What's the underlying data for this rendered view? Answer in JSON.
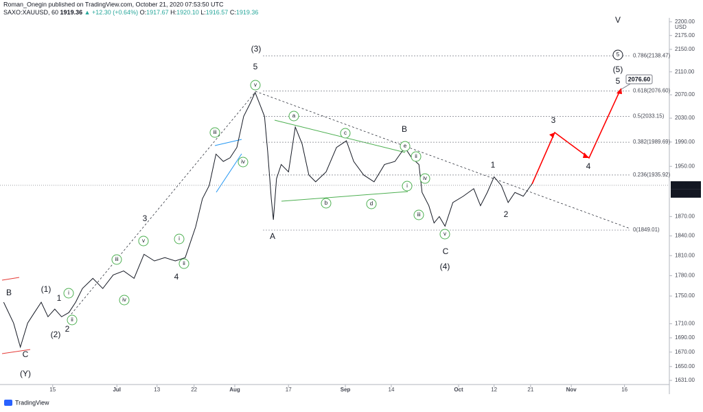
{
  "header": {
    "publisher": "Roman_Onegin published on TradingView.com, October 21, 2020 07:53:50 UTC",
    "symbol": "SAXO:XAUUSD, 60",
    "price": "1919.36",
    "change": "▲ +12.30 (+0.64%)",
    "ohlc": [
      {
        "label": "O:",
        "value": "1917.67"
      },
      {
        "label": "H:",
        "value": "1920.10"
      },
      {
        "label": "L:",
        "value": "1916.57"
      },
      {
        "label": "C:",
        "value": "1919.36"
      }
    ]
  },
  "chart_data": {
    "type": "line",
    "color": "#131722",
    "log_scale": true,
    "grid": false,
    "x": [
      0.7,
      2.6,
      3.9,
      5.3,
      6.6,
      7.9,
      9.2,
      10.5,
      11.8,
      13.2,
      14.5,
      15.8,
      17.8,
      19.7,
      21.7,
      23.7,
      25.7,
      27.6,
      29.6,
      31.6,
      33.6,
      35.5,
      37.5,
      38.8,
      40.1,
      41.4,
      42.8,
      44.1,
      45.4,
      46.7,
      48.0,
      48.9,
      49.7,
      50.7,
      51.3,
      52.0,
      52.4,
      53.0,
      53.9,
      55.3,
      56.6,
      57.9,
      59.2,
      60.5,
      62.5,
      64.5,
      66.4,
      67.8,
      69.7,
      71.7,
      73.7,
      75.7,
      77.6,
      78.9,
      80.3,
      80.9,
      82.2,
      83.2,
      84.2,
      85.3,
      86.8,
      88.8,
      90.8,
      92.1,
      93.4,
      94.7,
      96.1,
      97.4,
      98.7,
      100.3,
      102.0
    ],
    "values": [
      1741,
      1711,
      1677,
      1711,
      1726,
      1741,
      1720,
      1731,
      1720,
      1726,
      1741,
      1761,
      1776,
      1761,
      1781,
      1787,
      1776,
      1812,
      1802,
      1807,
      1802,
      1807,
      1854,
      1898,
      1919,
      1970,
      1958,
      1964,
      1981,
      2033,
      2056,
      2074,
      2056,
      2033,
      1975,
      1898,
      1865,
      1930,
      1953,
      1941,
      2015,
      1987,
      1936,
      1925,
      1941,
      1981,
      1992,
      1958,
      1936,
      1925,
      1953,
      1958,
      1981,
      1964,
      1953,
      1908,
      1887,
      1860,
      1870,
      1855,
      1892,
      1902,
      1914,
      1887,
      1908,
      1933,
      1919,
      1892,
      1908,
      1902,
      1922
    ],
    "xlim": [
      0,
      128.3
    ],
    "xticks": [
      {
        "value": 10.1,
        "label": "15"
      },
      {
        "value": 22.4,
        "label": "Jul"
      },
      {
        "value": 30.1,
        "label": "13"
      },
      {
        "value": 37.2,
        "label": "22"
      },
      {
        "value": 45.0,
        "label": "Aug"
      },
      {
        "value": 55.3,
        "label": "17"
      },
      {
        "value": 66.2,
        "label": "Sep"
      },
      {
        "value": 75.0,
        "label": "14"
      },
      {
        "value": 87.9,
        "label": "Oct"
      },
      {
        "value": 94.7,
        "label": "12"
      },
      {
        "value": 101.7,
        "label": "21"
      },
      {
        "value": 109.5,
        "label": "Nov"
      },
      {
        "value": 119.7,
        "label": "16"
      }
    ],
    "ylim": [
      1625.4,
      2206
    ],
    "yticks": [
      {
        "value": 2200,
        "label": "2200.00"
      },
      {
        "value": 2175,
        "label": "2175.00"
      },
      {
        "value": 2150,
        "label": "2150.00"
      },
      {
        "value": 2110,
        "label": "2110.00"
      },
      {
        "value": 2070,
        "label": "2070.00"
      },
      {
        "value": 2030,
        "label": "2030.00"
      },
      {
        "value": 1990,
        "label": "1990.00"
      },
      {
        "value": 1950,
        "label": "1950.00"
      },
      {
        "value": 1870,
        "label": "1870.00"
      },
      {
        "value": 1840,
        "label": "1840.00"
      },
      {
        "value": 1810,
        "label": "1810.00"
      },
      {
        "value": 1780,
        "label": "1780.00"
      },
      {
        "value": 1750,
        "label": "1750.00"
      },
      {
        "value": 1710,
        "label": "1710.00"
      },
      {
        "value": 1690,
        "label": "1690.00"
      },
      {
        "value": 1670,
        "label": "1670.00"
      },
      {
        "value": 1650,
        "label": "1650.00"
      },
      {
        "value": 1631,
        "label": "1631.00"
      }
    ],
    "currency": "USD",
    "last_price": 1919.36,
    "countdown": "06:15",
    "target_label": "2076.60",
    "levels": [
      {
        "value": 2138.47,
        "label": "0.786(2138.47)"
      },
      {
        "value": 2076.6,
        "label": "0.618(2076.60)"
      },
      {
        "value": 2033.15,
        "label": "0.5(2033.15)"
      },
      {
        "value": 1989.69,
        "label": "0.382(1989.69)"
      },
      {
        "value": 1935.92,
        "label": "0.236(1935.92)"
      },
      {
        "value": 1849.01,
        "label": "0(1849.01)"
      }
    ],
    "annotations": [
      {
        "text": "(3)",
        "color": "#e53935"
      },
      {
        "text": "5",
        "color": "#2196f3"
      },
      {
        "text": "v",
        "color": "#4caf50",
        "circled": true
      },
      {
        "text": "V",
        "color": "#f48fb1"
      },
      {
        "text": "5",
        "color": "#131722",
        "circled": true
      },
      {
        "text": "(5)",
        "color": "#e53935"
      },
      {
        "text": "5",
        "color": "#2196f3"
      },
      {
        "text": "a",
        "color": "#4caf50",
        "circled": true
      },
      {
        "text": "c",
        "color": "#4caf50",
        "circled": true
      },
      {
        "text": "B",
        "color": "#2196f3"
      },
      {
        "text": "e",
        "color": "#4caf50",
        "circled": true
      },
      {
        "text": "ii",
        "color": "#4caf50",
        "circled": true
      },
      {
        "text": "iv",
        "color": "#4caf50",
        "circled": true
      },
      {
        "text": "i",
        "color": "#4caf50",
        "circled": true
      },
      {
        "text": "b",
        "color": "#4caf50",
        "circled": true
      },
      {
        "text": "d",
        "color": "#4caf50",
        "circled": true
      },
      {
        "text": "iii",
        "color": "#4caf50",
        "circled": true
      },
      {
        "text": "v",
        "color": "#4caf50",
        "circled": true
      },
      {
        "text": "A",
        "color": "#2196f3"
      },
      {
        "text": "C",
        "color": "#2196f3"
      },
      {
        "text": "(4)",
        "color": "#e53935"
      },
      {
        "text": "1",
        "color": "#2196f3"
      },
      {
        "text": "2",
        "color": "#2196f3"
      },
      {
        "text": "3",
        "color": "#2196f3"
      },
      {
        "text": "4",
        "color": "#2196f3"
      },
      {
        "text": "iii",
        "color": "#4caf50",
        "circled": true
      },
      {
        "text": "iv",
        "color": "#4caf50",
        "circled": true
      },
      {
        "text": "i",
        "color": "#4caf50",
        "circled": true
      },
      {
        "text": "v",
        "color": "#4caf50",
        "circled": true
      },
      {
        "text": "iii",
        "color": "#4caf50",
        "circled": true
      },
      {
        "text": "ii",
        "color": "#4caf50",
        "circled": true
      },
      {
        "text": "iv",
        "color": "#4caf50",
        "circled": true
      },
      {
        "text": "3",
        "color": "#2196f3"
      },
      {
        "text": "4",
        "color": "#2196f3"
      },
      {
        "text": "(1)",
        "color": "#e53935"
      },
      {
        "text": "1",
        "color": "#2196f3"
      },
      {
        "text": "i",
        "color": "#4caf50",
        "circled": true
      },
      {
        "text": "ii",
        "color": "#4caf50",
        "circled": true
      },
      {
        "text": "2",
        "color": "#2196f3"
      },
      {
        "text": "(2)",
        "color": "#e53935"
      },
      {
        "text": "B",
        "color": "#2196f3"
      },
      {
        "text": "C",
        "color": "#2196f3"
      },
      {
        "text": "(Y)",
        "color": "#e53935"
      }
    ],
    "logo": "TradingView"
  }
}
